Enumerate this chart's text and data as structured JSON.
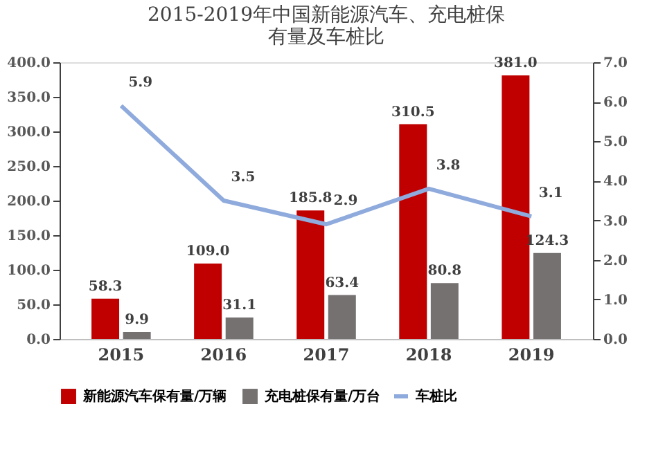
{
  "chart_data": {
    "type": "bar",
    "title": "2015-2019年中国新能源汽车、充电桩保有量及车桩比",
    "categories": [
      "2015",
      "2016",
      "2017",
      "2018",
      "2019"
    ],
    "series": [
      {
        "name": "新能源汽车保有量/万辆",
        "color": "#c00000",
        "values": [
          58.3,
          109.0,
          185.8,
          310.5,
          381.0
        ],
        "value_labels": [
          "58.3",
          "109.0",
          "185.8",
          "310.5",
          "381.0"
        ]
      },
      {
        "name": "充电桩保有量/万台",
        "color": "#767171",
        "values": [
          9.9,
          31.1,
          63.4,
          80.8,
          124.3
        ],
        "value_labels": [
          "9.9",
          "31.1",
          "63.4",
          "80.8",
          "124.3"
        ]
      },
      {
        "name": "车桩比",
        "color": "#8faadc",
        "type": "line",
        "axis": "y2",
        "values": [
          5.9,
          3.5,
          2.9,
          3.8,
          3.1
        ],
        "value_labels": [
          "5.9",
          "3.5",
          "2.9",
          "3.8",
          "3.1"
        ]
      }
    ],
    "ylim": [
      0,
      400
    ],
    "yticks": [
      {
        "value": 0,
        "label": "0.0"
      },
      {
        "value": 50,
        "label": "50.0"
      },
      {
        "value": 100,
        "label": "100.0"
      },
      {
        "value": 150,
        "label": "150.0"
      },
      {
        "value": 200,
        "label": "200.0"
      },
      {
        "value": 250,
        "label": "250.0"
      },
      {
        "value": 300,
        "label": "300.0"
      },
      {
        "value": 350,
        "label": "350.0"
      },
      {
        "value": 400,
        "label": "400.0"
      }
    ],
    "y2lim": [
      0,
      7
    ],
    "y2ticks": [
      {
        "value": 0,
        "label": "0.0"
      },
      {
        "value": 1,
        "label": "1.0"
      },
      {
        "value": 2,
        "label": "2.0"
      },
      {
        "value": 3,
        "label": "3.0"
      },
      {
        "value": 4,
        "label": "4.0"
      },
      {
        "value": 5,
        "label": "5.0"
      },
      {
        "value": 6,
        "label": "6.0"
      },
      {
        "value": 7,
        "label": "7.0"
      }
    ],
    "grid": false,
    "legend": "bottom",
    "marker": "none",
    "line_style": "solid"
  }
}
